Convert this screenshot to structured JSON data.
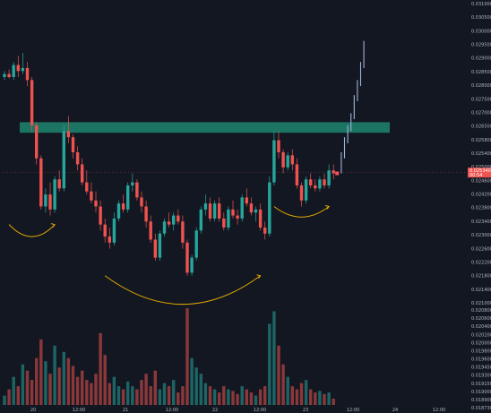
{
  "chart_data": {
    "type": "candlestick",
    "theme": {
      "background": "#131722",
      "up_color": "#26a69a",
      "down_color": "#ef5350",
      "zone_color": "#1b7a66",
      "annotation_color": "#e0a800",
      "grid": false
    },
    "price_axis": {
      "position": "right",
      "ticks": [
        "0.031000",
        "0.030500",
        "0.030000",
        "0.029500",
        "0.029000",
        "0.028500",
        "0.028000",
        "0.027500",
        "0.027000",
        "0.026500",
        "0.025800",
        "0.025400",
        "0.025000",
        "0.024600",
        "0.024200",
        "0.023800",
        "0.023400",
        "0.023000",
        "0.022600",
        "0.022200",
        "0.021800",
        "0.021400",
        "0.021000"
      ],
      "range": [
        0.021,
        0.031
      ],
      "last_price": "0.025340",
      "last_price_sub": "00:54"
    },
    "volume_axis": {
      "ticks": [
        "0.020800",
        "0.020600",
        "0.020400",
        "0.020200",
        "0.020000",
        "0.019800",
        "0.019600",
        "0.019450",
        "0.019300",
        "0.019150",
        "0.019000",
        "0.018900",
        "0.018730"
      ]
    },
    "time_axis": {
      "ticks": [
        "20",
        "12:00",
        "21",
        "12:00",
        "22",
        "12:00",
        "23",
        "12:00",
        "24",
        "12:00"
      ]
    },
    "resistance_zone": {
      "low": 0.02665,
      "high": 0.027
    },
    "candles": [
      {
        "o": 0.0285,
        "h": 0.0287,
        "l": 0.0284,
        "c": 0.0286,
        "v": 6
      },
      {
        "o": 0.0286,
        "h": 0.02875,
        "l": 0.02845,
        "c": 0.0285,
        "v": 10
      },
      {
        "o": 0.0285,
        "h": 0.029,
        "l": 0.0284,
        "c": 0.0289,
        "v": 18
      },
      {
        "o": 0.0289,
        "h": 0.0292,
        "l": 0.0285,
        "c": 0.0287,
        "v": 12
      },
      {
        "o": 0.0287,
        "h": 0.0293,
        "l": 0.0286,
        "c": 0.0288,
        "v": 26
      },
      {
        "o": 0.0288,
        "h": 0.029,
        "l": 0.0282,
        "c": 0.0284,
        "v": 22
      },
      {
        "o": 0.0284,
        "h": 0.0285,
        "l": 0.0267,
        "c": 0.0269,
        "v": 16
      },
      {
        "o": 0.0269,
        "h": 0.027,
        "l": 0.0256,
        "c": 0.0258,
        "v": 30
      },
      {
        "o": 0.0258,
        "h": 0.0259,
        "l": 0.0241,
        "c": 0.0242,
        "v": 42
      },
      {
        "o": 0.0242,
        "h": 0.0248,
        "l": 0.024,
        "c": 0.0246,
        "v": 28
      },
      {
        "o": 0.0246,
        "h": 0.025,
        "l": 0.0239,
        "c": 0.0241,
        "v": 20
      },
      {
        "o": 0.0241,
        "h": 0.0252,
        "l": 0.024,
        "c": 0.0251,
        "v": 38
      },
      {
        "o": 0.0251,
        "h": 0.0254,
        "l": 0.0247,
        "c": 0.0248,
        "v": 24
      },
      {
        "o": 0.0248,
        "h": 0.0269,
        "l": 0.0247,
        "c": 0.0267,
        "v": 34
      },
      {
        "o": 0.0267,
        "h": 0.0272,
        "l": 0.0263,
        "c": 0.0265,
        "v": 30
      },
      {
        "o": 0.0265,
        "h": 0.0266,
        "l": 0.0258,
        "c": 0.026,
        "v": 25
      },
      {
        "o": 0.026,
        "h": 0.0262,
        "l": 0.0254,
        "c": 0.0256,
        "v": 18
      },
      {
        "o": 0.0256,
        "h": 0.0258,
        "l": 0.0249,
        "c": 0.025,
        "v": 22
      },
      {
        "o": 0.025,
        "h": 0.0254,
        "l": 0.0246,
        "c": 0.0247,
        "v": 16
      },
      {
        "o": 0.0247,
        "h": 0.025,
        "l": 0.0243,
        "c": 0.0244,
        "v": 14
      },
      {
        "o": 0.0244,
        "h": 0.0247,
        "l": 0.024,
        "c": 0.0242,
        "v": 20
      },
      {
        "o": 0.0242,
        "h": 0.0244,
        "l": 0.0234,
        "c": 0.0236,
        "v": 46
      },
      {
        "o": 0.0236,
        "h": 0.0238,
        "l": 0.023,
        "c": 0.0232,
        "v": 32
      },
      {
        "o": 0.0232,
        "h": 0.0235,
        "l": 0.0228,
        "c": 0.023,
        "v": 14
      },
      {
        "o": 0.023,
        "h": 0.024,
        "l": 0.0229,
        "c": 0.0238,
        "v": 18
      },
      {
        "o": 0.0238,
        "h": 0.0244,
        "l": 0.0237,
        "c": 0.0243,
        "v": 12
      },
      {
        "o": 0.0243,
        "h": 0.0246,
        "l": 0.024,
        "c": 0.0241,
        "v": 10
      },
      {
        "o": 0.0241,
        "h": 0.025,
        "l": 0.024,
        "c": 0.0249,
        "v": 15
      },
      {
        "o": 0.0249,
        "h": 0.0253,
        "l": 0.0247,
        "c": 0.025,
        "v": 12
      },
      {
        "o": 0.025,
        "h": 0.0251,
        "l": 0.0244,
        "c": 0.0245,
        "v": 10
      },
      {
        "o": 0.0245,
        "h": 0.0247,
        "l": 0.024,
        "c": 0.0242,
        "v": 16
      },
      {
        "o": 0.0242,
        "h": 0.0244,
        "l": 0.0235,
        "c": 0.0237,
        "v": 20
      },
      {
        "o": 0.0237,
        "h": 0.0239,
        "l": 0.023,
        "c": 0.0231,
        "v": 12
      },
      {
        "o": 0.0231,
        "h": 0.0233,
        "l": 0.0224,
        "c": 0.0225,
        "v": 22
      },
      {
        "o": 0.0225,
        "h": 0.0234,
        "l": 0.0224,
        "c": 0.0233,
        "v": 10
      },
      {
        "o": 0.0233,
        "h": 0.0238,
        "l": 0.0232,
        "c": 0.0237,
        "v": 14
      },
      {
        "o": 0.0237,
        "h": 0.024,
        "l": 0.0235,
        "c": 0.0236,
        "v": 12
      },
      {
        "o": 0.0236,
        "h": 0.024,
        "l": 0.0234,
        "c": 0.0239,
        "v": 16
      },
      {
        "o": 0.0239,
        "h": 0.0241,
        "l": 0.0236,
        "c": 0.0237,
        "v": 8
      },
      {
        "o": 0.0237,
        "h": 0.0239,
        "l": 0.0228,
        "c": 0.023,
        "v": 12
      },
      {
        "o": 0.023,
        "h": 0.0231,
        "l": 0.0219,
        "c": 0.022,
        "v": 62
      },
      {
        "o": 0.022,
        "h": 0.0226,
        "l": 0.0219,
        "c": 0.0225,
        "v": 30
      },
      {
        "o": 0.0225,
        "h": 0.0235,
        "l": 0.0224,
        "c": 0.0234,
        "v": 24
      },
      {
        "o": 0.0234,
        "h": 0.0242,
        "l": 0.0233,
        "c": 0.0241,
        "v": 20
      },
      {
        "o": 0.0241,
        "h": 0.0246,
        "l": 0.0239,
        "c": 0.0243,
        "v": 14
      },
      {
        "o": 0.0243,
        "h": 0.0245,
        "l": 0.0237,
        "c": 0.0238,
        "v": 12
      },
      {
        "o": 0.0238,
        "h": 0.0244,
        "l": 0.0237,
        "c": 0.0243,
        "v": 10
      },
      {
        "o": 0.0243,
        "h": 0.0245,
        "l": 0.0237,
        "c": 0.0238,
        "v": 8
      },
      {
        "o": 0.0238,
        "h": 0.024,
        "l": 0.0234,
        "c": 0.0235,
        "v": 12
      },
      {
        "o": 0.0235,
        "h": 0.0242,
        "l": 0.0234,
        "c": 0.0241,
        "v": 10
      },
      {
        "o": 0.0241,
        "h": 0.0244,
        "l": 0.0238,
        "c": 0.0239,
        "v": 9
      },
      {
        "o": 0.0239,
        "h": 0.0241,
        "l": 0.0236,
        "c": 0.0238,
        "v": 7
      },
      {
        "o": 0.0238,
        "h": 0.0246,
        "l": 0.0237,
        "c": 0.0245,
        "v": 12
      },
      {
        "o": 0.0245,
        "h": 0.0248,
        "l": 0.0242,
        "c": 0.0243,
        "v": 10
      },
      {
        "o": 0.0243,
        "h": 0.0245,
        "l": 0.0239,
        "c": 0.024,
        "v": 8
      },
      {
        "o": 0.024,
        "h": 0.0242,
        "l": 0.0237,
        "c": 0.0241,
        "v": 6
      },
      {
        "o": 0.0241,
        "h": 0.0243,
        "l": 0.0234,
        "c": 0.0235,
        "v": 10
      },
      {
        "o": 0.0235,
        "h": 0.0237,
        "l": 0.0231,
        "c": 0.0233,
        "v": 12
      },
      {
        "o": 0.0233,
        "h": 0.0252,
        "l": 0.0232,
        "c": 0.025,
        "v": 52
      },
      {
        "o": 0.025,
        "h": 0.0267,
        "l": 0.0249,
        "c": 0.0264,
        "v": 60
      },
      {
        "o": 0.0264,
        "h": 0.0267,
        "l": 0.0258,
        "c": 0.026,
        "v": 38
      },
      {
        "o": 0.026,
        "h": 0.0261,
        "l": 0.0253,
        "c": 0.0255,
        "v": 26
      },
      {
        "o": 0.0255,
        "h": 0.026,
        "l": 0.0254,
        "c": 0.0259,
        "v": 18
      },
      {
        "o": 0.0259,
        "h": 0.0261,
        "l": 0.0254,
        "c": 0.0256,
        "v": 12
      },
      {
        "o": 0.0256,
        "h": 0.0258,
        "l": 0.0248,
        "c": 0.0249,
        "v": 10
      },
      {
        "o": 0.0249,
        "h": 0.025,
        "l": 0.0242,
        "c": 0.0244,
        "v": 14
      },
      {
        "o": 0.0244,
        "h": 0.0252,
        "l": 0.0243,
        "c": 0.0251,
        "v": 16
      },
      {
        "o": 0.0251,
        "h": 0.0253,
        "l": 0.0248,
        "c": 0.0249,
        "v": 10
      },
      {
        "o": 0.0249,
        "h": 0.0251,
        "l": 0.0247,
        "c": 0.0248,
        "v": 8
      },
      {
        "o": 0.0248,
        "h": 0.0252,
        "l": 0.0247,
        "c": 0.0251,
        "v": 9
      },
      {
        "o": 0.0251,
        "h": 0.0253,
        "l": 0.0248,
        "c": 0.0249,
        "v": 7
      },
      {
        "o": 0.0249,
        "h": 0.0256,
        "l": 0.0248,
        "c": 0.0254,
        "v": 8
      },
      {
        "o": 0.0254,
        "h": 0.0256,
        "l": 0.0251,
        "c": 0.0253,
        "v": 4
      }
    ],
    "forecast_path": [
      0.0254,
      0.0259,
      0.0264,
      0.0268,
      0.0272,
      0.0278,
      0.0283,
      0.0289,
      0.0296
    ],
    "annotations": [
      {
        "type": "arc",
        "from": [
          1,
          0.0236
        ],
        "to": [
          11,
          0.0236
        ],
        "depth": 0.0004
      },
      {
        "type": "arc",
        "from": [
          22,
          0.0219
        ],
        "to": [
          56,
          0.0219
        ],
        "depth": 0.00095
      },
      {
        "type": "arc",
        "from": [
          59,
          0.0242
        ],
        "to": [
          71,
          0.0242
        ],
        "depth": 0.00035
      }
    ]
  }
}
